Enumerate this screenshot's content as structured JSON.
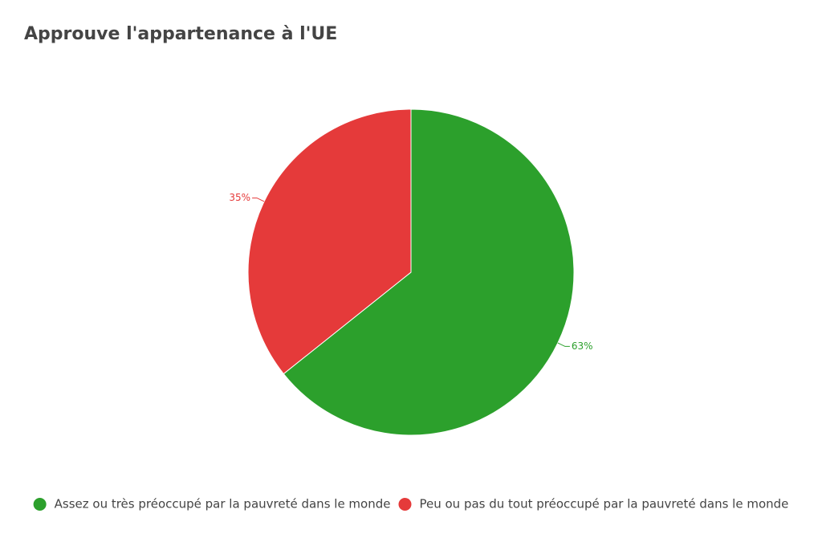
{
  "chart_data": {
    "type": "pie",
    "title": "Approuve l'appartenance à l'UE",
    "categories": [
      "Assez ou très préoccupé par la pauvreté dans le monde",
      "Peu ou pas du tout préoccupé par la pauvreté dans le monde"
    ],
    "values": [
      63,
      35
    ],
    "value_labels": [
      "63%",
      "35%"
    ],
    "colors": [
      "#2ca02c",
      "#e53a3a"
    ],
    "legend": "bottom"
  }
}
